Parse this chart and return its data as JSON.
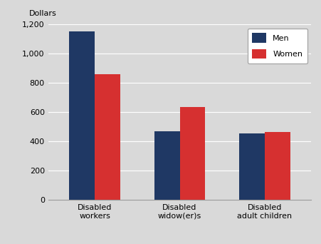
{
  "categories": [
    "Disabled\nworkers",
    "Disabled\nwidow(er)s",
    "Disabled\nadult children"
  ],
  "men_values": [
    1150,
    470,
    455
  ],
  "women_values": [
    860,
    638,
    463
  ],
  "men_color": "#1f3864",
  "women_color": "#d63030",
  "background_color": "#d9d9d9",
  "plot_bg_color": "#d9d9d9",
  "ylabel": "Dollars",
  "ylim": [
    0,
    1200
  ],
  "yticks": [
    0,
    200,
    400,
    600,
    800,
    1000,
    1200
  ],
  "legend_labels": [
    "Men",
    "Women"
  ],
  "bar_width": 0.3,
  "figsize": [
    4.51,
    3.42
  ],
  "dpi": 100
}
